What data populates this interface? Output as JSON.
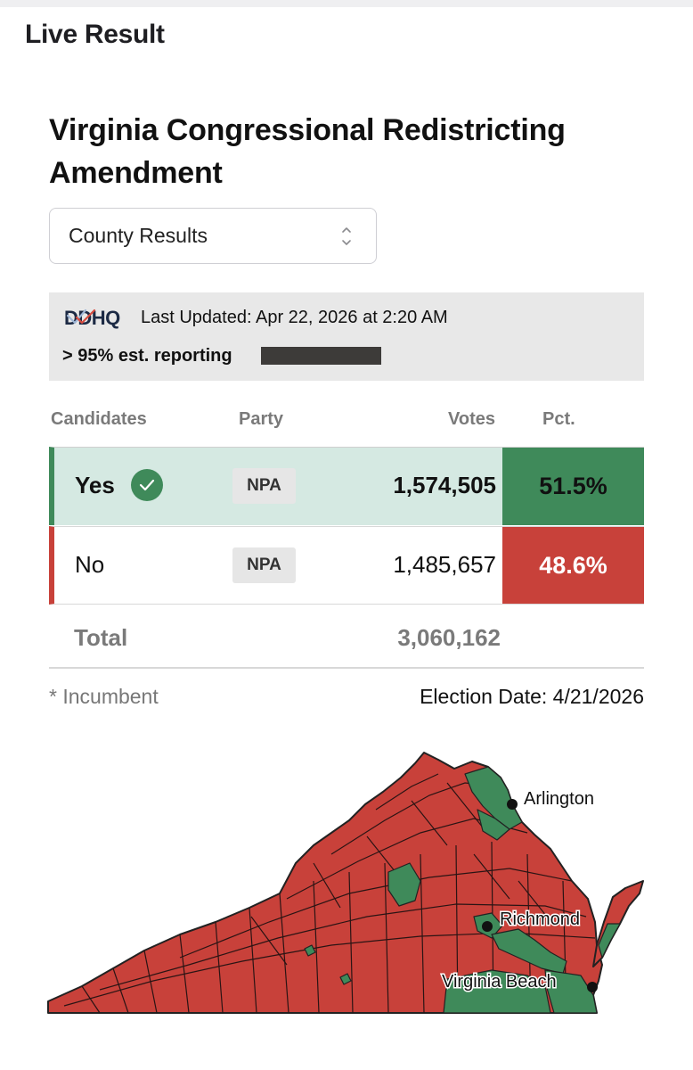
{
  "header": {
    "title": "Live Result"
  },
  "race": {
    "title": "Virginia Congressional Redistricting Amendment"
  },
  "view_select": {
    "selected": "County Results"
  },
  "update": {
    "brand": "DDHQ",
    "last_updated": "Last Updated: Apr 22, 2026 at 2:20 AM",
    "reporting_label": "> 95% est. reporting",
    "reporting_fraction": 0.95
  },
  "table": {
    "headers": {
      "candidates": "Candidates",
      "party": "Party",
      "votes": "Votes",
      "pct": "Pct."
    },
    "rows": [
      {
        "candidate": "Yes",
        "winner": true,
        "party": "NPA",
        "votes": "1,574,505",
        "pct": "51.5%",
        "color": "#3f8a5a"
      },
      {
        "candidate": "No",
        "winner": false,
        "party": "NPA",
        "votes": "1,485,657",
        "pct": "48.6%",
        "color": "#c8413a"
      }
    ],
    "total": {
      "label": "Total",
      "votes": "3,060,162"
    }
  },
  "footer": {
    "incumbent_note": "* Incumbent",
    "election_date": "Election Date: 4/21/2026"
  },
  "map": {
    "cities": [
      {
        "name": "Arlington"
      },
      {
        "name": "Richmond"
      },
      {
        "name": "Virginia Beach"
      }
    ],
    "colors": {
      "yes": "#3f8a5a",
      "no": "#c8413a",
      "border": "#222222"
    }
  }
}
